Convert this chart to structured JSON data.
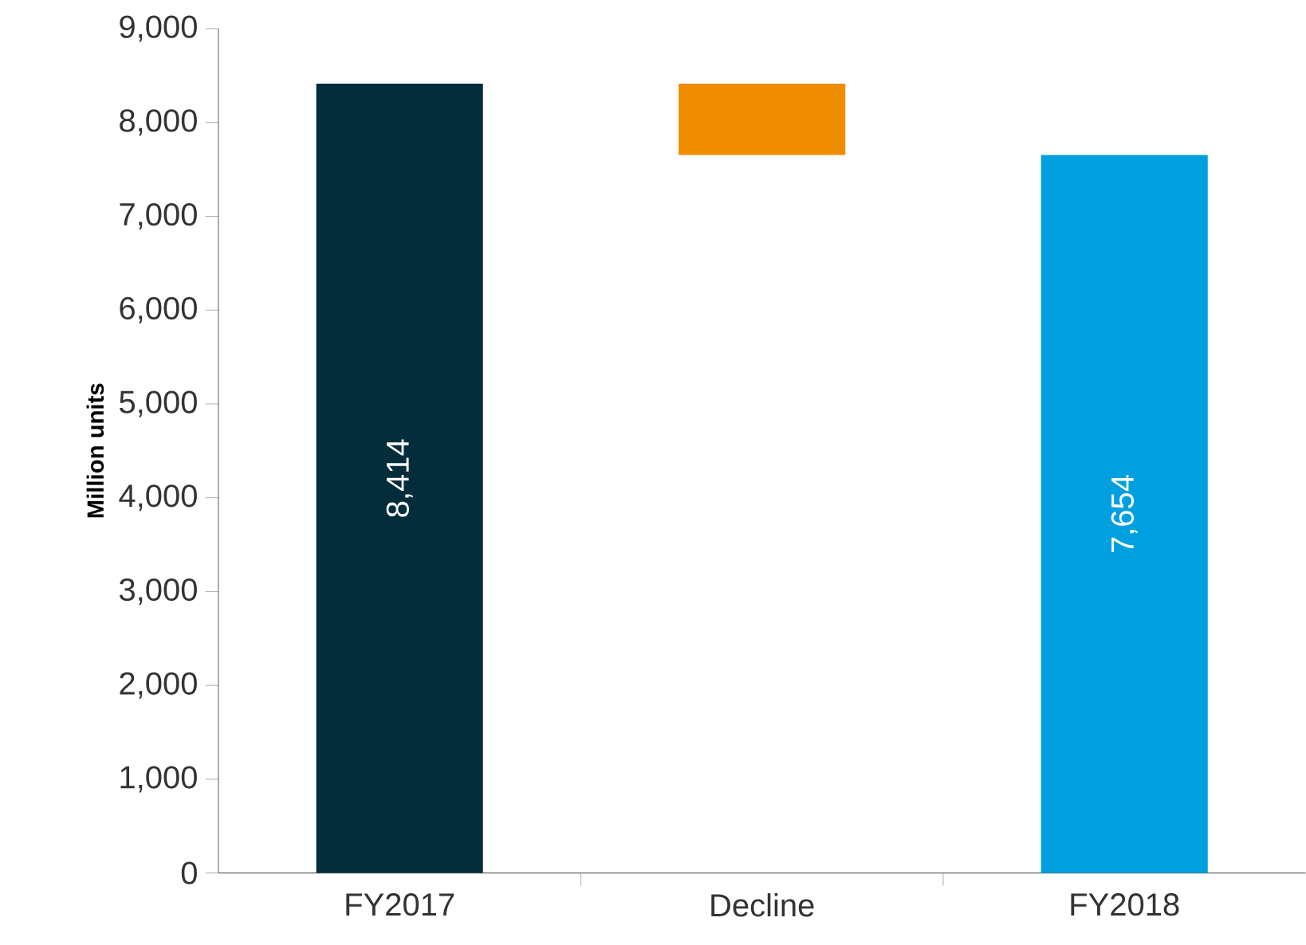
{
  "chart_data": {
    "type": "bar",
    "ylabel": "Million units",
    "categories": [
      "FY2017",
      "Decline",
      "FY2018"
    ],
    "values": [
      8414,
      -760,
      7654
    ],
    "base": [
      0,
      8414,
      0
    ],
    "colors": [
      "#032d3a",
      "#f08c00",
      "#00a0e0"
    ],
    "value_labels": [
      "8,414",
      null,
      "7,654"
    ],
    "ylim": [
      0,
      9000
    ],
    "yticks": [
      0,
      {
        "value": 1000,
        "label": "1,000"
      },
      {
        "value": 2000,
        "label": "2,000"
      },
      {
        "value": 3000,
        "label": "3,000"
      },
      {
        "value": 4000,
        "label": "4,000"
      },
      {
        "value": 5000,
        "label": "5,000"
      },
      {
        "value": 6000,
        "label": "6,000"
      },
      {
        "value": 7000,
        "label": "7,000"
      },
      {
        "value": 8000,
        "label": "8,000"
      },
      {
        "value": 9000,
        "label": "9,000"
      }
    ]
  }
}
